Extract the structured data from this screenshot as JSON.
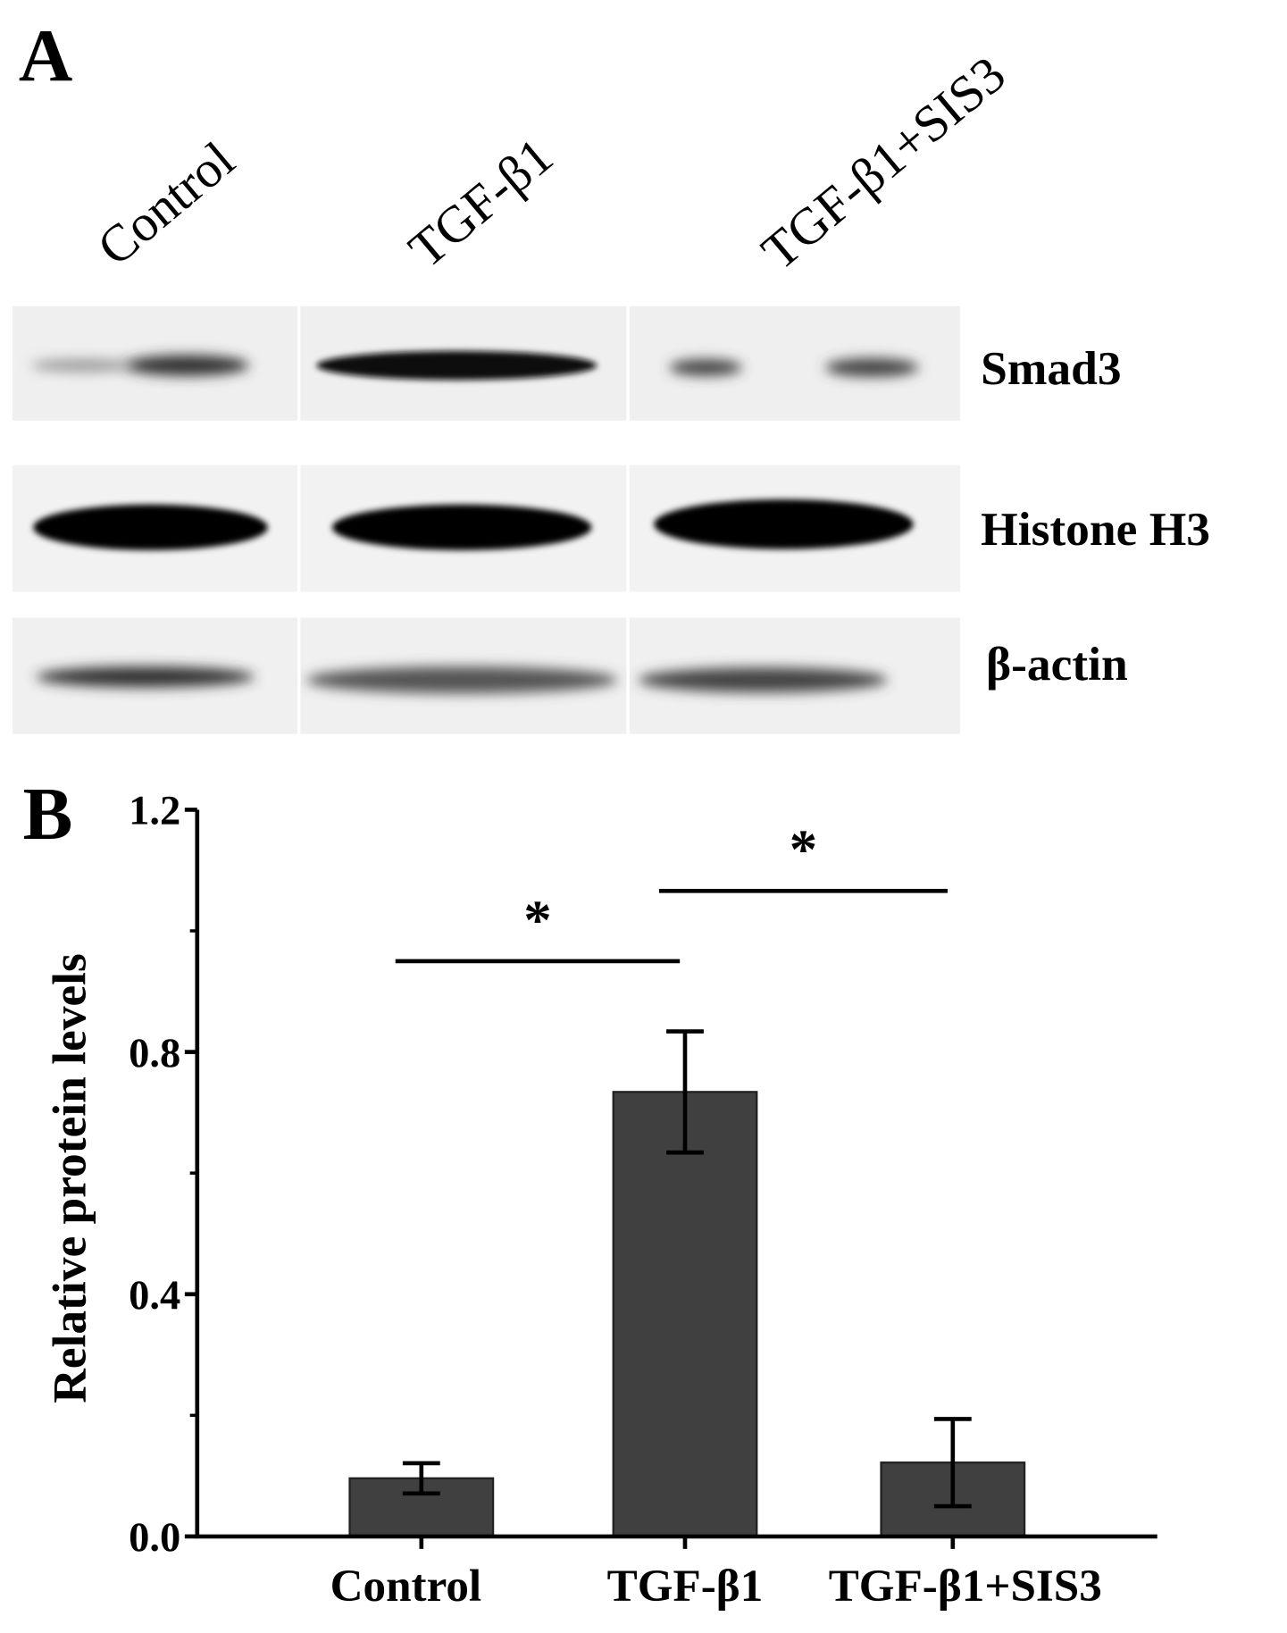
{
  "panel_a": {
    "label": "A",
    "lanes": [
      "Control",
      "TGF-β1",
      "TGF-β1+SIS3"
    ],
    "bands": [
      "Smad3",
      "Histone H3",
      "β-actin"
    ]
  },
  "chart_data": {
    "type": "bar",
    "panel_label": "B",
    "y_label": "Relative protein levels",
    "categories": [
      "Control",
      "TGF-β1",
      "TGF-β1+SIS3"
    ],
    "values": [
      0.096,
      0.734,
      0.122
    ],
    "errors": [
      0.025,
      0.1,
      0.072
    ],
    "color": "#404040",
    "ylim": [
      0,
      1.2
    ],
    "yticks": [
      {
        "value": 0,
        "label": "0.0"
      },
      0.4,
      0.8,
      1.2
    ],
    "yminor_ticks": [
      0.2,
      0.6,
      1.0
    ],
    "significance": [
      {
        "from": 0,
        "to": 1,
        "y": 0.95,
        "label": "*"
      },
      {
        "from": 1,
        "to": 2,
        "y": 1.066,
        "label": "*"
      }
    ]
  }
}
